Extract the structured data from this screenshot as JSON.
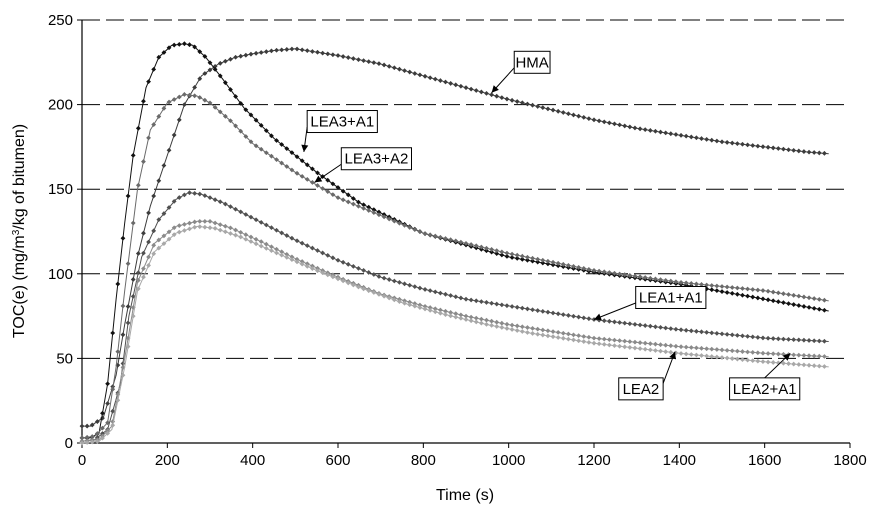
{
  "chart_data": {
    "type": "line",
    "title": "",
    "xlabel": "Time (s)",
    "ylabel_main": "TOC(e) (mg/m",
    "ylabel_sup": "3",
    "ylabel_tail": "/kg of bitumen)",
    "xlim": [
      0,
      1800
    ],
    "ylim": [
      0,
      250
    ],
    "x_ticks": [
      0,
      200,
      400,
      600,
      800,
      1000,
      1200,
      1400,
      1600,
      1800
    ],
    "y_ticks": [
      0,
      50,
      100,
      150,
      200,
      250
    ],
    "grid": "horizontal dashed",
    "legend": "callout labels",
    "series": [
      {
        "name": "HMA",
        "color": "#3c3c3c",
        "points": [
          [
            0,
            10
          ],
          [
            20,
            10
          ],
          [
            50,
            15
          ],
          [
            80,
            40
          ],
          [
            100,
            70
          ],
          [
            130,
            110
          ],
          [
            160,
            140
          ],
          [
            200,
            170
          ],
          [
            240,
            200
          ],
          [
            280,
            217
          ],
          [
            320,
            224
          ],
          [
            360,
            228
          ],
          [
            400,
            230
          ],
          [
            450,
            232
          ],
          [
            500,
            233
          ],
          [
            550,
            231
          ],
          [
            600,
            229
          ],
          [
            700,
            224
          ],
          [
            800,
            217
          ],
          [
            900,
            210
          ],
          [
            1000,
            203
          ],
          [
            1100,
            197
          ],
          [
            1200,
            191
          ],
          [
            1300,
            186
          ],
          [
            1400,
            182
          ],
          [
            1500,
            178
          ],
          [
            1600,
            175
          ],
          [
            1700,
            172
          ],
          [
            1750,
            171
          ]
        ]
      },
      {
        "name": "LEA3+A1",
        "color": "#111111",
        "points": [
          [
            0,
            3
          ],
          [
            20,
            3
          ],
          [
            40,
            6
          ],
          [
            60,
            35
          ],
          [
            80,
            85
          ],
          [
            100,
            130
          ],
          [
            120,
            170
          ],
          [
            150,
            210
          ],
          [
            180,
            228
          ],
          [
            210,
            235
          ],
          [
            240,
            236
          ],
          [
            260,
            235
          ],
          [
            290,
            228
          ],
          [
            330,
            215
          ],
          [
            380,
            198
          ],
          [
            450,
            180
          ],
          [
            550,
            160
          ],
          [
            650,
            142
          ],
          [
            800,
            124
          ],
          [
            1000,
            110
          ],
          [
            1200,
            101
          ],
          [
            1400,
            94
          ],
          [
            1600,
            85
          ],
          [
            1750,
            78
          ]
        ]
      },
      {
        "name": "LEA3+A2",
        "color": "#6a6a6a",
        "points": [
          [
            0,
            3
          ],
          [
            30,
            4
          ],
          [
            60,
            12
          ],
          [
            80,
            45
          ],
          [
            100,
            90
          ],
          [
            130,
            150
          ],
          [
            160,
            185
          ],
          [
            200,
            201
          ],
          [
            240,
            206
          ],
          [
            270,
            205
          ],
          [
            300,
            201
          ],
          [
            350,
            190
          ],
          [
            400,
            177
          ],
          [
            500,
            160
          ],
          [
            600,
            145
          ],
          [
            800,
            124
          ],
          [
            1000,
            112
          ],
          [
            1200,
            102
          ],
          [
            1400,
            95
          ],
          [
            1600,
            90
          ],
          [
            1750,
            84
          ]
        ]
      },
      {
        "name": "LEA1+A1",
        "color": "#505050",
        "points": [
          [
            0,
            1
          ],
          [
            30,
            2
          ],
          [
            60,
            8
          ],
          [
            90,
            35
          ],
          [
            110,
            75
          ],
          [
            140,
            110
          ],
          [
            180,
            132
          ],
          [
            220,
            144
          ],
          [
            250,
            148
          ],
          [
            280,
            147
          ],
          [
            330,
            142
          ],
          [
            400,
            133
          ],
          [
            500,
            120
          ],
          [
            600,
            108
          ],
          [
            700,
            98
          ],
          [
            800,
            91
          ],
          [
            900,
            85
          ],
          [
            1000,
            81
          ],
          [
            1100,
            77
          ],
          [
            1200,
            73
          ],
          [
            1400,
            67
          ],
          [
            1600,
            62
          ],
          [
            1750,
            60
          ]
        ]
      },
      {
        "name": "LEA2+A1",
        "color": "#8a8a8a",
        "points": [
          [
            0,
            1
          ],
          [
            40,
            2
          ],
          [
            70,
            10
          ],
          [
            100,
            50
          ],
          [
            130,
            95
          ],
          [
            170,
            118
          ],
          [
            220,
            128
          ],
          [
            270,
            131
          ],
          [
            300,
            131
          ],
          [
            350,
            127
          ],
          [
            420,
            119
          ],
          [
            500,
            109
          ],
          [
            600,
            98
          ],
          [
            700,
            88
          ],
          [
            800,
            81
          ],
          [
            900,
            75
          ],
          [
            1000,
            70
          ],
          [
            1200,
            62
          ],
          [
            1400,
            57
          ],
          [
            1600,
            53
          ],
          [
            1750,
            51
          ]
        ]
      },
      {
        "name": "LEA2",
        "color": "#a8a8a8",
        "points": [
          [
            0,
            0
          ],
          [
            40,
            1
          ],
          [
            70,
            8
          ],
          [
            100,
            45
          ],
          [
            130,
            90
          ],
          [
            170,
            113
          ],
          [
            220,
            124
          ],
          [
            270,
            128
          ],
          [
            310,
            127
          ],
          [
            370,
            122
          ],
          [
            450,
            113
          ],
          [
            550,
            102
          ],
          [
            650,
            92
          ],
          [
            750,
            83
          ],
          [
            850,
            76
          ],
          [
            950,
            70
          ],
          [
            1050,
            65
          ],
          [
            1200,
            59
          ],
          [
            1400,
            53
          ],
          [
            1600,
            48
          ],
          [
            1750,
            45
          ]
        ]
      }
    ],
    "callouts": [
      {
        "text": "HMA",
        "series": "HMA",
        "target": [
          960,
          207
        ],
        "label_at": [
          1055,
          225
        ]
      },
      {
        "text": "LEA3+A1",
        "series": "LEA3+A1",
        "target": [
          520,
          172
        ],
        "label_at": [
          610,
          190
        ]
      },
      {
        "text": "LEA3+A2",
        "series": "LEA3+A2",
        "target": [
          545,
          154
        ],
        "label_at": [
          690,
          168
        ]
      },
      {
        "text": "LEA1+A1",
        "series": "LEA1+A1",
        "target": [
          1200,
          73
        ],
        "label_at": [
          1380,
          86
        ]
      },
      {
        "text": "LEA2",
        "series": "LEA2",
        "target": [
          1390,
          54
        ],
        "label_at": [
          1310,
          32
        ]
      },
      {
        "text": "LEA2+A1",
        "series": "LEA2+A1",
        "target": [
          1660,
          53
        ],
        "label_at": [
          1600,
          32
        ]
      }
    ]
  }
}
